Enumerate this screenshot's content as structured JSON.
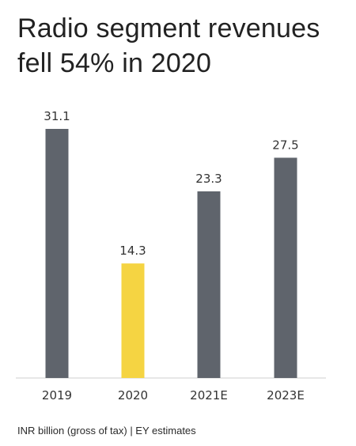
{
  "header": {
    "title_line1": "Radio segment revenues",
    "title_line2": "fell 54% in 2020"
  },
  "footnote": "INR billion (gross of tax) | EY estimates",
  "colors": {
    "bar_default": "#5f646c",
    "bar_highlight": "#f5d442",
    "axis": "#cfcfcf",
    "label": "#333333"
  },
  "chart_data": {
    "type": "bar",
    "title": "Radio segment revenues fell 54% in 2020",
    "categories": [
      "2019",
      "2020",
      "2021E",
      "2023E"
    ],
    "values": [
      31.1,
      14.3,
      23.3,
      27.5
    ],
    "value_labels": [
      "31.1",
      "14.3",
      "23.3",
      "27.5"
    ],
    "highlight": "2020",
    "ylim": [
      0,
      31.1
    ],
    "grid": false,
    "legend": "none"
  }
}
